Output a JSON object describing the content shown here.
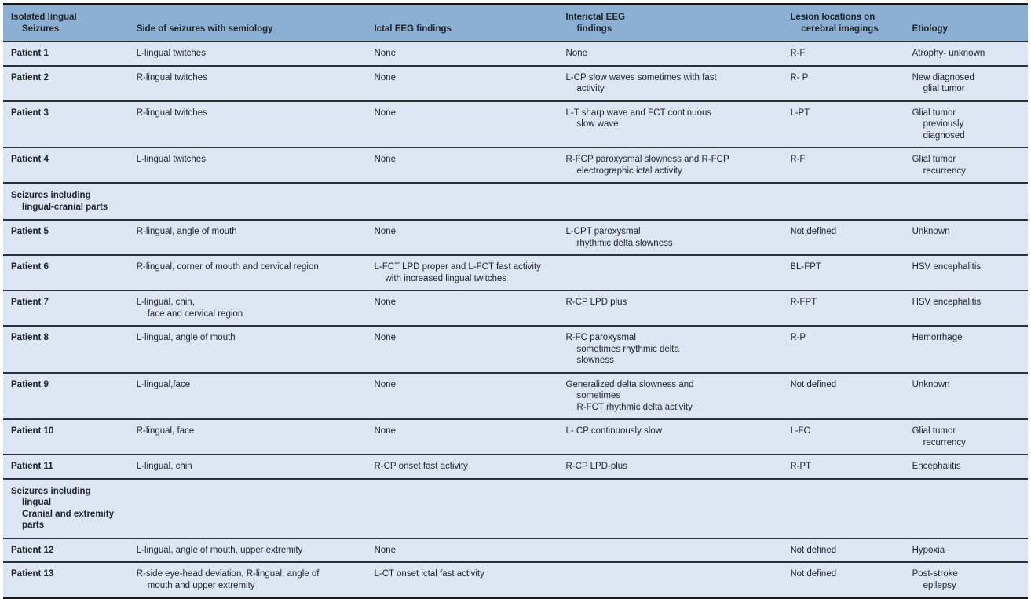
{
  "colors": {
    "header_bg": "#8cb0d3",
    "row_bg": "#dce6f2",
    "rule": "#2b2f36",
    "outer_border": "#15181c",
    "text": "#1d2126"
  },
  "table": {
    "columns": [
      "Isolated lingual\nSeizures",
      "Side of seizures with semiology",
      "Ictal EEG findings",
      "Interictal EEG\nfindings",
      "Lesion locations on\ncerebral imagings",
      "Etiology"
    ],
    "rows": [
      {
        "type": "data",
        "patient": "Patient 1",
        "semiology": "L-lingual twitches",
        "ictal": "None",
        "interictal": "None",
        "lesion": "R-F",
        "etiology": "Atrophy- unknown"
      },
      {
        "type": "data",
        "patient": "Patient 2",
        "semiology": "R-lingual twitches",
        "ictal": "None",
        "interictal": "L-CP slow waves sometimes with fast\nactivity",
        "lesion": "R- P",
        "etiology": "New diagnosed\nglial tumor"
      },
      {
        "type": "data",
        "patient": "Patient 3",
        "semiology": "R-lingual twitches",
        "ictal": "None",
        "interictal": "L-T sharp wave and FCT continuous\nslow wave",
        "lesion": "L-PT",
        "etiology": "Glial tumor\npreviously\ndiagnosed"
      },
      {
        "type": "data",
        "patient": "Patient 4",
        "semiology": "L-lingual twitches",
        "ictal": "None",
        "interictal": "R-FCP paroxysmal slowness and R-FCP\nelectrographic ictal activity",
        "lesion": "R-F",
        "etiology": "Glial tumor\nrecurrency"
      },
      {
        "type": "section",
        "label": "Seizures including\nlingual-cranial parts"
      },
      {
        "type": "data",
        "patient": "Patient 5",
        "semiology": "R-lingual, angle of mouth",
        "ictal": "None",
        "interictal": "L-CPT paroxysmal\nrhythmic delta slowness",
        "lesion": "Not defined",
        "etiology": "Unknown"
      },
      {
        "type": "data",
        "patient": "Patient 6",
        "semiology": "R-lingual, corner of mouth and cervical region",
        "ictal": "L-FCT LPD proper and L-FCT fast activity\nwith increased lingual twitches",
        "ictal_colspan": 2,
        "interictal": "",
        "lesion": "BL-FPT",
        "etiology": "HSV encephalitis"
      },
      {
        "type": "data",
        "patient": "Patient 7",
        "semiology": "L-lingual, chin,\nface and cervical region",
        "ictal": "None",
        "interictal": "R-CP LPD plus",
        "lesion": "R-FPT",
        "etiology": "HSV encephalitis"
      },
      {
        "type": "data",
        "patient": "Patient 8",
        "semiology": "L-lingual, angle of mouth",
        "ictal": "None",
        "interictal": "R-FC paroxysmal\nsometimes rhythmic delta\nslowness",
        "lesion": "R-P",
        "etiology": "Hemorrhage"
      },
      {
        "type": "data",
        "patient": "Patient 9",
        "semiology": "L-lingual,face",
        "ictal": "None",
        "interictal": "Generalized delta slowness and\nsometimes\nR-FCT rhythmic delta activity",
        "lesion": "Not defined",
        "etiology": "Unknown"
      },
      {
        "type": "data",
        "patient": "Patient 10",
        "semiology": "R-lingual, face",
        "ictal": "None",
        "interictal": "L- CP continuously slow",
        "lesion": "L-FC",
        "etiology": "Glial tumor\nrecurrency"
      },
      {
        "type": "data",
        "patient": "Patient 11",
        "semiology": "L-lingual, chin",
        "ictal": "R-CP onset fast activity",
        "interictal": "R-CP LPD-plus",
        "lesion": "R-PT",
        "etiology": "Encephalitis"
      },
      {
        "type": "section",
        "label": "Seizures including\nlingual\nCranial and extremity\nparts"
      },
      {
        "type": "data",
        "patient": "Patient 12",
        "semiology": "L-lingual, angle of mouth, upper extremity",
        "ictal": "None",
        "interictal": "",
        "lesion": "Not defined",
        "etiology": "Hypoxia"
      },
      {
        "type": "data",
        "patient": "Patient 13",
        "semiology": "R-side eye-head deviation, R-lingual, angle of\nmouth and upper extremity",
        "ictal": "L-CT onset ictal fast activity",
        "interictal": "",
        "lesion": "Not defined",
        "etiology": "Post-stroke\nepilepsy"
      }
    ]
  }
}
